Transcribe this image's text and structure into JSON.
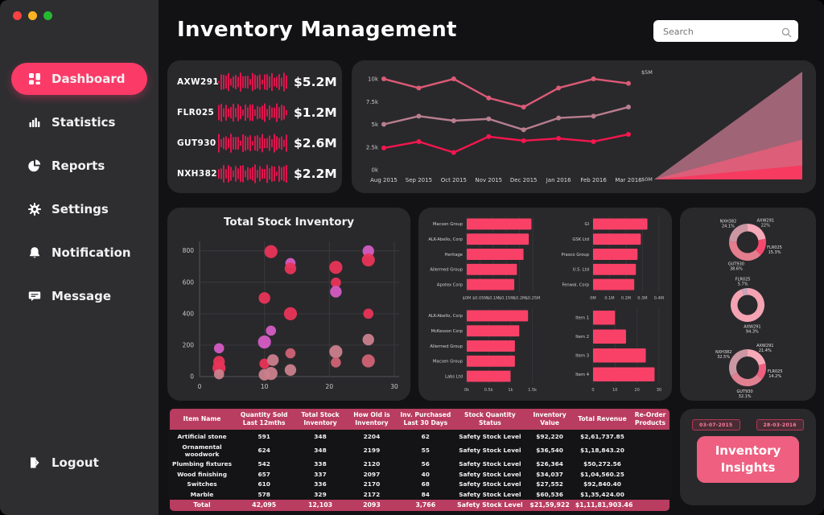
{
  "window": {
    "traffic_lights": [
      "#f64242",
      "#fbb321",
      "#25b831"
    ]
  },
  "sidebar": {
    "items": [
      {
        "label": "Dashboard",
        "icon": "dashboard-grid-icon",
        "active": true
      },
      {
        "label": "Statistics",
        "icon": "bar-chart-icon",
        "active": false
      },
      {
        "label": "Reports",
        "icon": "pie-chart-icon",
        "active": false
      },
      {
        "label": "Settings",
        "icon": "gear-icon",
        "active": false
      },
      {
        "label": "Notification",
        "icon": "bell-icon",
        "active": false
      },
      {
        "label": "Message",
        "icon": "message-icon",
        "active": false
      }
    ],
    "logout": {
      "label": "Logout",
      "icon": "logout-door-icon"
    }
  },
  "header": {
    "title": "Inventory Management",
    "search": {
      "placeholder": "Search",
      "icon": "search-magnifier-icon",
      "value": ""
    }
  },
  "products": {
    "waveform_color": "#e3164e",
    "items": [
      {
        "code": "AXW291",
        "value": "$5.2M"
      },
      {
        "code": "FLR025",
        "value": "$1.2M"
      },
      {
        "code": "GUT930",
        "value": "$2.6M"
      },
      {
        "code": "NXH382",
        "value": "$2.2M"
      }
    ]
  },
  "colors": {
    "accent": "#fb3a68",
    "bar": "#f94168",
    "table_header": "#b93d60"
  },
  "chart_data": [
    {
      "id": "monthly-trend",
      "type": "line",
      "legend": "none",
      "grid": false,
      "x": [
        "Aug 2015",
        "Sep 2015",
        "Oct 2015",
        "Nov 2015",
        "Dec 2015",
        "Jan 2016",
        "Feb 2016",
        "Mar 2016"
      ],
      "yticks": [
        {
          "v": 0,
          "label": "0k"
        },
        {
          "v": 2500,
          "label": "2.5k"
        },
        {
          "v": 5000,
          "label": "5k"
        },
        {
          "v": 7500,
          "label": "7.5k"
        },
        {
          "v": 10000,
          "label": "10k"
        }
      ],
      "ymax": 10800,
      "series": [
        {
          "name": "series-high",
          "color": "#dc5a75",
          "values": [
            10000,
            9000,
            10000,
            7900,
            6900,
            9000,
            10000,
            9500
          ]
        },
        {
          "name": "series-mid",
          "color": "#b97e8e",
          "values": [
            5000,
            5900,
            5400,
            5600,
            4400,
            5700,
            5900,
            6900
          ]
        },
        {
          "name": "series-low",
          "color": "#f5164e",
          "values": [
            2400,
            3100,
            1900,
            3650,
            3200,
            3450,
            3100,
            3900
          ]
        }
      ]
    },
    {
      "id": "revenue-growth-area",
      "type": "area",
      "ymax": 5,
      "ymax_label": "$5M",
      "ymin_label": "$0M",
      "layers": [
        {
          "name": "layer-outer",
          "value": 5.0,
          "color": "rgba(189,115,137,0.8)"
        },
        {
          "name": "layer-mid",
          "value": 1.85,
          "color": "rgba(230,93,121,0.85)"
        },
        {
          "name": "layer-inner",
          "value": 0.65,
          "color": "#f63a60"
        }
      ]
    },
    {
      "id": "total-stock-scatter",
      "type": "scatter",
      "title": "Total Stock Inventory",
      "xticks": [
        0,
        10,
        20,
        30
      ],
      "yticks": [
        0,
        200,
        400,
        600,
        800
      ],
      "xmax": 30,
      "ymax": 860,
      "grid": true,
      "palette": {
        "r": "#e93459",
        "m": "#d45cc3",
        "d": "#c9808c",
        "s": "#cf6274"
      },
      "points": [
        {
          "x": 3,
          "y": 180,
          "c": "m"
        },
        {
          "x": 3,
          "y": 95,
          "c": "r"
        },
        {
          "x": 3,
          "y": 55,
          "c": "r"
        },
        {
          "x": 3,
          "y": 15,
          "c": "d"
        },
        {
          "x": 10,
          "y": 500,
          "c": "r"
        },
        {
          "x": 10,
          "y": 220,
          "c": "m"
        },
        {
          "x": 10,
          "y": 82,
          "c": "r"
        },
        {
          "x": 10,
          "y": 12,
          "c": "d"
        },
        {
          "x": 11,
          "y": 795,
          "c": "r"
        },
        {
          "x": 11,
          "y": 292,
          "c": "m"
        },
        {
          "x": 11.3,
          "y": 105,
          "c": "d"
        },
        {
          "x": 11,
          "y": 20,
          "c": "d"
        },
        {
          "x": 14,
          "y": 722,
          "c": "m"
        },
        {
          "x": 14,
          "y": 688,
          "c": "r"
        },
        {
          "x": 14,
          "y": 400,
          "c": "r"
        },
        {
          "x": 14,
          "y": 148,
          "c": "s"
        },
        {
          "x": 14,
          "y": 42,
          "c": "d"
        },
        {
          "x": 21,
          "y": 695,
          "c": "r"
        },
        {
          "x": 21,
          "y": 598,
          "c": "r"
        },
        {
          "x": 21,
          "y": 540,
          "c": "m"
        },
        {
          "x": 21,
          "y": 158,
          "c": "d"
        },
        {
          "x": 21,
          "y": 90,
          "c": "s"
        },
        {
          "x": 26,
          "y": 798,
          "c": "m"
        },
        {
          "x": 26,
          "y": 742,
          "c": "r"
        },
        {
          "x": 26,
          "y": 400,
          "c": "r"
        },
        {
          "x": 26,
          "y": 235,
          "c": "d"
        },
        {
          "x": 26,
          "y": 100,
          "c": "s"
        }
      ]
    },
    {
      "id": "supplier-value-bars",
      "type": "bar",
      "orientation": "horizontal",
      "categories": [
        "Macsen Group",
        "ALK-Abello, Corp",
        "Heritage",
        "Allermed Group",
        "Apotex Corp"
      ],
      "values": [
        0.245,
        0.235,
        0.215,
        0.19,
        0.18
      ],
      "xticks": [
        "$0M",
        "$0.05M",
        "$0.1M",
        "$0.15M",
        "$0.2M",
        "$0.25M"
      ],
      "xtick_values": [
        0,
        0.05,
        0.1,
        0.15,
        0.2,
        0.25
      ],
      "xmax": 0.262
    },
    {
      "id": "supplier-qty-bars",
      "type": "bar",
      "orientation": "horizontal",
      "categories": [
        "ALK-Abello, Corp",
        "McKesson Corp",
        "Allermed Group",
        "Macsen Group",
        "Labs Ltd"
      ],
      "values": [
        1.4,
        1.2,
        1.1,
        1.1,
        1.0
      ],
      "xticks": [
        "0k",
        "0.5k",
        "1k",
        "1.5k"
      ],
      "xtick_values": [
        0,
        0.5,
        1,
        1.5
      ],
      "xmax": 1.58
    },
    {
      "id": "company-value-bars",
      "type": "bar",
      "orientation": "horizontal",
      "categories": [
        "GI",
        "GSK Ltd",
        "Prasco Group",
        "U.S. Ltd",
        "Fenwal, Corp"
      ],
      "values": [
        0.33,
        0.29,
        0.27,
        0.26,
        0.25
      ],
      "xticks": [
        "0M",
        "0.1M",
        "0.2M",
        "0.3M",
        "0.4M"
      ],
      "xtick_values": [
        0,
        0.1,
        0.2,
        0.3,
        0.4
      ],
      "xmax": 0.42
    },
    {
      "id": "item-qty-bars",
      "type": "bar",
      "orientation": "horizontal",
      "categories": [
        "Item 1",
        "Item 2",
        "Item 3",
        "Item 4"
      ],
      "values": [
        10,
        15,
        24,
        28
      ],
      "xticks": [
        "0",
        "10",
        "20",
        "30"
      ],
      "xtick_values": [
        0,
        10,
        20,
        30
      ],
      "xmax": 31.5
    },
    {
      "id": "product-share-donut-top",
      "type": "pie",
      "donut": true,
      "r_outer": 23,
      "r_inner": 13.5,
      "segments": [
        {
          "label": "AXW291",
          "pct": "22%",
          "value": 22,
          "color": "#f6a9b7"
        },
        {
          "label": "FLR025",
          "pct": "15.3%",
          "value": 15.3,
          "color": "#f6486f"
        },
        {
          "label": "GUT930",
          "pct": "38.6%",
          "value": 38.6,
          "color": "#e47d8d"
        },
        {
          "label": "NXH382",
          "pct": "24.1%",
          "value": 24.1,
          "color": "#cc96a3"
        }
      ]
    },
    {
      "id": "product-share-donut-mid",
      "type": "pie",
      "donut": true,
      "r_outer": 21,
      "r_inner": 12.5,
      "segments": [
        {
          "label": "AXW291",
          "pct": "94.3%",
          "value": 94.3,
          "color": "#f4a3b2"
        },
        {
          "label": "FLR025",
          "pct": "5.7%",
          "value": 5.7,
          "color": "#c7a3bb"
        }
      ]
    },
    {
      "id": "product-share-donut-bottom",
      "type": "pie",
      "donut": true,
      "r_outer": 23,
      "r_inner": 14,
      "segments": [
        {
          "label": "AXW291",
          "pct": "21.4%",
          "value": 21.4,
          "color": "#f6a9b7"
        },
        {
          "label": "FLR025",
          "pct": "14.2%",
          "value": 14.2,
          "color": "#ee5f7f"
        },
        {
          "label": "GUT930",
          "pct": "32.1%",
          "value": 32.1,
          "color": "#e08091"
        },
        {
          "label": "NXH382",
          "pct": "32.5%",
          "value": 32.5,
          "color": "#cc96a3"
        }
      ]
    }
  ],
  "table": {
    "columns": [
      "Item Name",
      "Quantity Sold Last 12mths",
      "Total Stock Inventory",
      "How Old is Inventory",
      "Inv. Purchased Last 30 Days",
      "Stock Quantity Status",
      "Inventory Value",
      "Total Revenue",
      "Re-Order Products"
    ],
    "rows": [
      [
        "Artificial stone",
        "591",
        "348",
        "2204",
        "62",
        "Safety Stock Level",
        "$92,220",
        "$2,61,737.85",
        ""
      ],
      [
        "Ornamental woodwork",
        "624",
        "348",
        "2199",
        "55",
        "Safety Stock Level",
        "$36,540",
        "$1,18,843.20",
        ""
      ],
      [
        "Plumbing fixtures",
        "542",
        "338",
        "2120",
        "56",
        "Safety Stock Level",
        "$26,364",
        "$50,272.56",
        ""
      ],
      [
        "Wood finishing",
        "657",
        "337",
        "2097",
        "40",
        "Safety Stock Level",
        "$34,037",
        "$1,04,560.25",
        ""
      ],
      [
        "Switches",
        "610",
        "336",
        "2170",
        "68",
        "Safety Stock Level",
        "$27,552",
        "$92,840.40",
        ""
      ],
      [
        "Marble",
        "578",
        "329",
        "2172",
        "84",
        "Safety Stock Level",
        "$60,536",
        "$1,35,424.00",
        ""
      ]
    ],
    "total_row": [
      "Total",
      "42,095",
      "12,103",
      "2093",
      "3,766",
      "Safety Stock Level",
      "$21,59,922",
      "$1,11,81,903.46",
      ""
    ]
  },
  "insights": {
    "date_from": "03-07-2015",
    "date_to": "28-03-2016",
    "button_label": "Inventory Insights"
  }
}
